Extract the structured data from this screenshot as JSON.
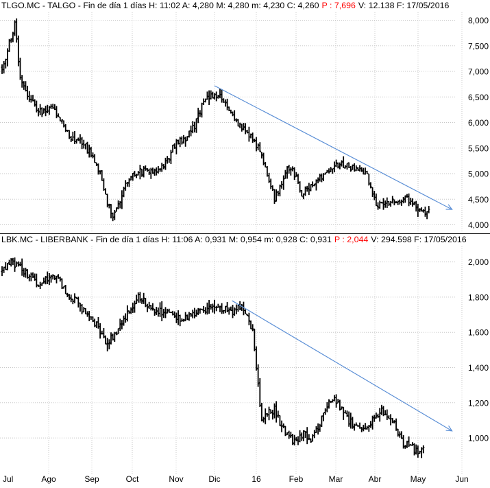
{
  "colors": {
    "background": "#ffffff",
    "grid": "#c8c8c8",
    "bars": "#000000",
    "trendline": "#5b8fd6",
    "header_text": "#000000",
    "p_value_text": "#ff0000",
    "divider": "#000000"
  },
  "months": [
    "Jul",
    "Ago",
    "Sep",
    "Oct",
    "Nov",
    "Dic",
    "16",
    "Feb",
    "Mar",
    "Abr",
    "May",
    "Jun"
  ],
  "chart_data": [
    {
      "type": "ohlc",
      "ticker": "TLGO.MC",
      "header": {
        "prefix": "TLGO.MC - TALGO - Fin de día 1 días  H: 11:02  A: 4,280  M: 4,280  m: 4,230  C: 4,260",
        "p_part": "P : 7,696",
        "suffix": "V: 12.138  F: 17/05/2016"
      },
      "ylim": [
        4.0,
        8.0
      ],
      "yticks": [
        "4,000",
        "4,500",
        "5,000",
        "5,500",
        "6,000",
        "6,500",
        "7,000",
        "7,500",
        "8,000"
      ],
      "ytick_values": [
        4.0,
        4.5,
        5.0,
        5.5,
        6.0,
        6.5,
        7.0,
        7.5,
        8.0
      ],
      "anchors": [
        [
          0,
          7.1
        ],
        [
          3,
          7.4
        ],
        [
          7,
          7.9
        ],
        [
          10,
          6.9
        ],
        [
          16,
          6.4
        ],
        [
          22,
          6.2
        ],
        [
          28,
          6.3
        ],
        [
          33,
          6.0
        ],
        [
          38,
          5.7
        ],
        [
          44,
          5.6
        ],
        [
          49,
          5.4
        ],
        [
          54,
          5.0
        ],
        [
          58,
          4.4
        ],
        [
          61,
          4.2
        ],
        [
          63,
          4.3
        ],
        [
          67,
          4.7
        ],
        [
          72,
          5.0
        ],
        [
          78,
          5.05
        ],
        [
          84,
          5.05
        ],
        [
          89,
          5.15
        ],
        [
          95,
          5.55
        ],
        [
          101,
          5.7
        ],
        [
          106,
          5.95
        ],
        [
          110,
          6.3
        ],
        [
          114,
          6.5
        ],
        [
          119,
          6.55
        ],
        [
          124,
          6.3
        ],
        [
          129,
          6.0
        ],
        [
          134,
          5.8
        ],
        [
          138,
          5.7
        ],
        [
          142,
          5.45
        ],
        [
          146,
          5.0
        ],
        [
          150,
          4.5
        ],
        [
          154,
          4.8
        ],
        [
          157,
          5.1
        ],
        [
          161,
          5.0
        ],
        [
          165,
          4.6
        ],
        [
          169,
          4.75
        ],
        [
          173,
          4.85
        ],
        [
          178,
          4.95
        ],
        [
          183,
          5.15
        ],
        [
          187,
          5.2
        ],
        [
          191,
          5.15
        ],
        [
          196,
          5.05
        ],
        [
          200,
          5.05
        ],
        [
          203,
          4.7
        ],
        [
          206,
          4.4
        ],
        [
          210,
          4.45
        ],
        [
          215,
          4.48
        ],
        [
          220,
          4.52
        ],
        [
          225,
          4.48
        ],
        [
          229,
          4.35
        ],
        [
          233,
          4.2
        ],
        [
          235,
          4.26
        ]
      ],
      "trendline": [
        [
          "2015-12-01",
          6.72
        ],
        [
          "2016-05-25",
          4.3
        ]
      ]
    },
    {
      "type": "ohlc",
      "ticker": "LBK.MC",
      "header": {
        "prefix": "LBK.MC - LIBERBANK - Fin de día 1 días  H: 11:06  A: 0,931  M: 0,954  m: 0,928  C: 0,931",
        "p_part": "P : 2,044",
        "suffix": "V: 294.598  F: 17/05/2016"
      },
      "ylim": [
        0.86,
        2.1
      ],
      "yticks": [
        "1,000",
        "1,200",
        "1,400",
        "1,600",
        "1,800",
        "2,000"
      ],
      "ytick_values": [
        1.0,
        1.2,
        1.4,
        1.6,
        1.8,
        2.0
      ],
      "anchors": [
        [
          0,
          1.95
        ],
        [
          5,
          2.0
        ],
        [
          10,
          1.97
        ],
        [
          15,
          1.92
        ],
        [
          20,
          1.88
        ],
        [
          25,
          1.9
        ],
        [
          30,
          1.93
        ],
        [
          36,
          1.82
        ],
        [
          41,
          1.78
        ],
        [
          45,
          1.72
        ],
        [
          50,
          1.68
        ],
        [
          54,
          1.6
        ],
        [
          57,
          1.54
        ],
        [
          60,
          1.56
        ],
        [
          63,
          1.6
        ],
        [
          67,
          1.68
        ],
        [
          71,
          1.72
        ],
        [
          75,
          1.8
        ],
        [
          78,
          1.78
        ],
        [
          83,
          1.73
        ],
        [
          88,
          1.72
        ],
        [
          93,
          1.7
        ],
        [
          98,
          1.68
        ],
        [
          103,
          1.69
        ],
        [
          108,
          1.71
        ],
        [
          113,
          1.73
        ],
        [
          118,
          1.74
        ],
        [
          123,
          1.73
        ],
        [
          127,
          1.72
        ],
        [
          131,
          1.75
        ],
        [
          135,
          1.7
        ],
        [
          138,
          1.6
        ],
        [
          141,
          1.3
        ],
        [
          143,
          1.1
        ],
        [
          146,
          1.14
        ],
        [
          150,
          1.16
        ],
        [
          154,
          1.06
        ],
        [
          158,
          1.0
        ],
        [
          162,
          0.98
        ],
        [
          166,
          1.02
        ],
        [
          170,
          0.99
        ],
        [
          174,
          1.06
        ],
        [
          178,
          1.15
        ],
        [
          181,
          1.22
        ],
        [
          185,
          1.2
        ],
        [
          189,
          1.12
        ],
        [
          193,
          1.08
        ],
        [
          197,
          1.04
        ],
        [
          201,
          1.06
        ],
        [
          205,
          1.13
        ],
        [
          209,
          1.15
        ],
        [
          213,
          1.12
        ],
        [
          217,
          1.06
        ],
        [
          221,
          0.97
        ],
        [
          225,
          0.95
        ],
        [
          229,
          0.93
        ],
        [
          232,
          0.94
        ]
      ],
      "trendline": [
        [
          "2015-12-14",
          1.78
        ],
        [
          "2016-05-25",
          1.04
        ]
      ]
    }
  ]
}
